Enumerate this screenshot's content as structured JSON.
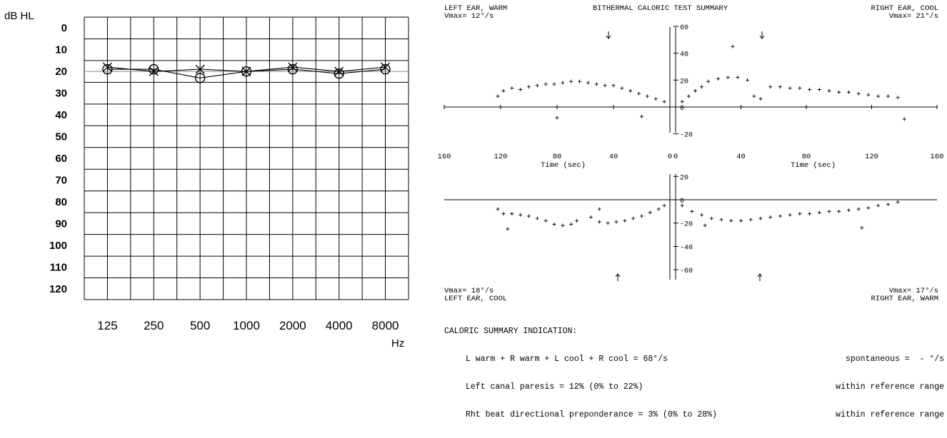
{
  "audiogram": {
    "chart_data": {
      "type": "line",
      "ylabel": "dB HL",
      "xlabel": "Hz",
      "categories": [
        "125",
        "250",
        "500",
        "1000",
        "2000",
        "4000",
        "8000"
      ],
      "y_ticks": [
        "0",
        "10",
        "20",
        "30",
        "40",
        "50",
        "60",
        "70",
        "80",
        "90",
        "100",
        "110",
        "120"
      ],
      "ylim": [
        0,
        120
      ],
      "y_inverted": true,
      "grid": true,
      "series": [
        {
          "marker": "O",
          "values": [
            19,
            19,
            23,
            20,
            19,
            21,
            19
          ]
        },
        {
          "marker": "X",
          "values": [
            18,
            20,
            19,
            20,
            18,
            20,
            18
          ]
        }
      ]
    }
  },
  "caloric": {
    "header": {
      "left": "LEFT EAR, WARM",
      "left_vmax": "Vmax= 12°/s",
      "center": "BITHERMAL CALORIC TEST SUMMARY",
      "right": "RIGHT EAR, COOL",
      "right_vmax": "Vmax= 21°/s"
    },
    "footer": {
      "left_vmax": "Vmax= 18°/s",
      "left": "LEFT EAR, COOL",
      "right_vmax": "Vmax= 17°/s",
      "right": "RIGHT EAR, WARM"
    },
    "time_axis_label": "Time (sec)",
    "chart_data": [
      {
        "type": "scatter",
        "title": "LEFT EAR, WARM",
        "xlabel": "Time (sec)",
        "x_ticks": [
          "160",
          "120",
          "80",
          "40",
          "0"
        ],
        "xlim": [
          160,
          0
        ],
        "y_ticks": [],
        "ylim": [
          -25,
          65
        ],
        "points": [
          [
            122,
            8
          ],
          [
            118,
            12
          ],
          [
            112,
            14
          ],
          [
            106,
            13
          ],
          [
            100,
            15
          ],
          [
            94,
            16
          ],
          [
            88,
            17
          ],
          [
            82,
            17
          ],
          [
            76,
            18
          ],
          [
            70,
            19
          ],
          [
            64,
            19
          ],
          [
            58,
            18
          ],
          [
            52,
            17
          ],
          [
            46,
            16
          ],
          [
            40,
            16
          ],
          [
            34,
            14
          ],
          [
            28,
            12
          ],
          [
            22,
            10
          ],
          [
            16,
            8
          ],
          [
            10,
            6
          ],
          [
            4,
            4
          ],
          [
            80,
            -8
          ],
          [
            20,
            -7
          ]
        ]
      },
      {
        "type": "scatter",
        "title": "RIGHT EAR, COOL",
        "xlabel": "Time (sec)",
        "x_ticks": [
          "0",
          "40",
          "80",
          "120",
          "160"
        ],
        "xlim": [
          0,
          160
        ],
        "y_ticks": [
          "60",
          "40",
          "20",
          "0",
          "-20"
        ],
        "ylim": [
          -25,
          65
        ],
        "points": [
          [
            4,
            4
          ],
          [
            8,
            8
          ],
          [
            12,
            12
          ],
          [
            16,
            15
          ],
          [
            20,
            19
          ],
          [
            26,
            21
          ],
          [
            32,
            22
          ],
          [
            38,
            22
          ],
          [
            44,
            20
          ],
          [
            48,
            8
          ],
          [
            52,
            6
          ],
          [
            58,
            15
          ],
          [
            64,
            15
          ],
          [
            70,
            14
          ],
          [
            76,
            14
          ],
          [
            82,
            13
          ],
          [
            88,
            13
          ],
          [
            94,
            12
          ],
          [
            100,
            11
          ],
          [
            106,
            11
          ],
          [
            112,
            10
          ],
          [
            118,
            9
          ],
          [
            124,
            8
          ],
          [
            130,
            8
          ],
          [
            136,
            7
          ],
          [
            140,
            -9
          ],
          [
            35,
            45
          ]
        ]
      },
      {
        "type": "scatter",
        "title": "LEFT EAR, COOL",
        "xlabel": "Time (sec)",
        "x_ticks": [
          "160",
          "120",
          "80",
          "40",
          "0"
        ],
        "xlim": [
          160,
          0
        ],
        "y_ticks": [],
        "ylim": [
          -65,
          25
        ],
        "points": [
          [
            122,
            -8
          ],
          [
            118,
            -12
          ],
          [
            112,
            -12
          ],
          [
            106,
            -13
          ],
          [
            100,
            -14
          ],
          [
            94,
            -16
          ],
          [
            88,
            -18
          ],
          [
            82,
            -21
          ],
          [
            76,
            -22
          ],
          [
            70,
            -21
          ],
          [
            66,
            -18
          ],
          [
            56,
            -15
          ],
          [
            50,
            -19
          ],
          [
            44,
            -20
          ],
          [
            38,
            -19
          ],
          [
            32,
            -18
          ],
          [
            26,
            -16
          ],
          [
            20,
            -14
          ],
          [
            14,
            -11
          ],
          [
            8,
            -8
          ],
          [
            4,
            -5
          ],
          [
            115,
            -25
          ],
          [
            50,
            -8
          ]
        ]
      },
      {
        "type": "scatter",
        "title": "RIGHT EAR, WARM",
        "xlabel": "Time (sec)",
        "x_ticks": [
          "0",
          "40",
          "80",
          "120",
          "160"
        ],
        "xlim": [
          0,
          160
        ],
        "y_ticks": [
          "20",
          "0",
          "-20",
          "-40",
          "-60"
        ],
        "ylim": [
          -65,
          25
        ],
        "points": [
          [
            4,
            -5
          ],
          [
            10,
            -10
          ],
          [
            16,
            -13
          ],
          [
            22,
            -16
          ],
          [
            28,
            -17
          ],
          [
            34,
            -18
          ],
          [
            40,
            -18
          ],
          [
            46,
            -17
          ],
          [
            52,
            -16
          ],
          [
            58,
            -15
          ],
          [
            64,
            -14
          ],
          [
            70,
            -13
          ],
          [
            76,
            -12
          ],
          [
            82,
            -12
          ],
          [
            88,
            -11
          ],
          [
            94,
            -10
          ],
          [
            100,
            -10
          ],
          [
            106,
            -9
          ],
          [
            112,
            -8
          ],
          [
            118,
            -7
          ],
          [
            124,
            -5
          ],
          [
            130,
            -4
          ],
          [
            136,
            -2
          ],
          [
            114,
            -24
          ],
          [
            18,
            -22
          ]
        ]
      }
    ],
    "summary": {
      "heading": "CALORIC SUMMARY INDICATION:",
      "line1": "L warm + R warm + L cool + R cool = 68°/s",
      "line1_right": "spontaneous =  - °/s",
      "line2": "Left canal paresis = 12% (0% to 22%)",
      "line2_right": "within reference range",
      "line3": "Rht beat directional preponderance = 3% (0% to 28%)",
      "line3_right": "within reference range"
    }
  }
}
